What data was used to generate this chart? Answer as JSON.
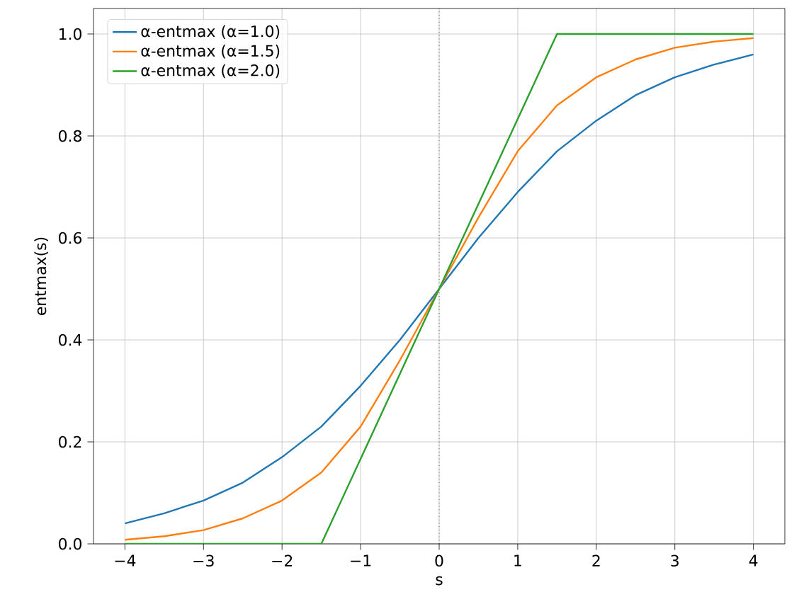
{
  "chart_data": {
    "type": "line",
    "xlabel": "s",
    "ylabel": "entmax(s)",
    "xlim": [
      -4.4,
      4.4
    ],
    "ylim": [
      0,
      1.05
    ],
    "xticks": [
      {
        "value": -4,
        "label": "−4"
      },
      {
        "value": -3,
        "label": "−3"
      },
      {
        "value": -2,
        "label": "−2"
      },
      {
        "value": -1,
        "label": "−1"
      },
      {
        "value": 0,
        "label": "0"
      },
      {
        "value": 1,
        "label": "1"
      },
      {
        "value": 2,
        "label": "2"
      },
      {
        "value": 3,
        "label": "3"
      },
      {
        "value": 4,
        "label": "4"
      }
    ],
    "yticks": [
      {
        "value": 0,
        "label": "0.0"
      },
      {
        "value": 0.2,
        "label": "0.2"
      },
      {
        "value": 0.4,
        "label": "0.4"
      },
      {
        "value": 0.6,
        "label": "0.6"
      },
      {
        "value": 0.8,
        "label": "0.8"
      },
      {
        "value": 1.0,
        "label": "1.0"
      }
    ],
    "grid": true,
    "legend": "top left",
    "marker": "none",
    "line_style": "solid",
    "ref_lines": [
      {
        "axis": "x",
        "value": 0,
        "color": "#000000",
        "line_style": "dotted"
      }
    ],
    "series": [
      {
        "name": "α-entmax (α=1.0)",
        "color": "#1f77b4",
        "x": [
          -4,
          -3.5,
          -3,
          -2.5,
          -2,
          -1.5,
          -1,
          -0.5,
          0,
          0.5,
          1,
          1.5,
          2,
          2.5,
          3,
          3.5,
          4
        ],
        "values": [
          0.04,
          0.06,
          0.085,
          0.12,
          0.17,
          0.23,
          0.31,
          0.4,
          0.5,
          0.6,
          0.69,
          0.77,
          0.83,
          0.88,
          0.915,
          0.94,
          0.96
        ]
      },
      {
        "name": "α-entmax (α=1.5)",
        "color": "#ff7f0e",
        "x": [
          -4,
          -3.5,
          -3,
          -2.5,
          -2,
          -1.5,
          -1,
          -0.5,
          0,
          0.5,
          1,
          1.5,
          2,
          2.5,
          3,
          3.5,
          4
        ],
        "values": [
          0.008,
          0.015,
          0.027,
          0.05,
          0.085,
          0.14,
          0.23,
          0.36,
          0.5,
          0.64,
          0.77,
          0.86,
          0.915,
          0.95,
          0.973,
          0.985,
          0.992
        ]
      },
      {
        "name": "α-entmax (α=2.0)",
        "color": "#2ca02c",
        "x": [
          -4,
          -1.5,
          1.5,
          4
        ],
        "values": [
          0,
          0,
          1,
          1
        ]
      }
    ]
  }
}
